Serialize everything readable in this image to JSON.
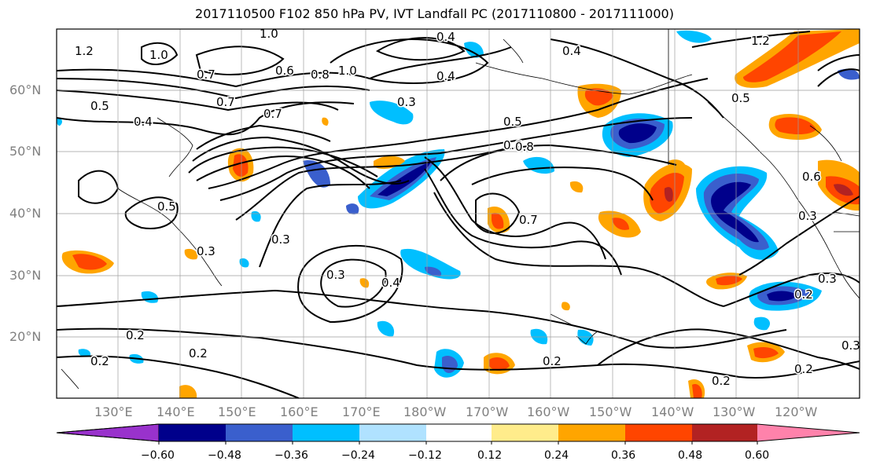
{
  "title": "2017110500 F102 850 hPa PV, IVT Landfall PC (2017110800 - 2017111000)",
  "lat_labels": [
    "60°N",
    "50°N",
    "40°N",
    "30°N",
    "20°N"
  ],
  "lon_labels": [
    "130°E",
    "140°E",
    "150°E",
    "160°E",
    "170°E",
    "180°W",
    "170°W",
    "160°W",
    "150°W",
    "140°W",
    "130°W",
    "120°W"
  ],
  "contour_labels": [
    "1.0",
    "1.2",
    "1.0",
    "0.7",
    "0.8",
    "0.6",
    "1.0",
    "0.4",
    "1.2",
    "0.7",
    "0.7",
    "0.5",
    "0.4",
    "0.3",
    "0.6",
    "0.5",
    "0.4",
    "0.3",
    "0.3",
    "0.4",
    "0.5",
    "0.6",
    "0.8",
    "0.7",
    "0.5",
    "0.3",
    "0.3",
    "0.4",
    "0.2",
    "0.2",
    "0.2",
    "0.2",
    "0.2",
    "0.2",
    "0.2",
    "0.3",
    "0.3"
  ],
  "colorbar": {
    "ticks": [
      "−0.60",
      "−0.48",
      "−0.36",
      "−0.24",
      "−0.12",
      "0.12",
      "0.24",
      "0.36",
      "0.48",
      "0.60"
    ],
    "colors": [
      "#9932cc",
      "#00008b",
      "#3a5fcd",
      "#00bfff",
      "#b0e2ff",
      "#ffffff",
      "#ffec8b",
      "#ffa500",
      "#ff4500",
      "#b22222",
      "#ff82ab"
    ]
  }
}
